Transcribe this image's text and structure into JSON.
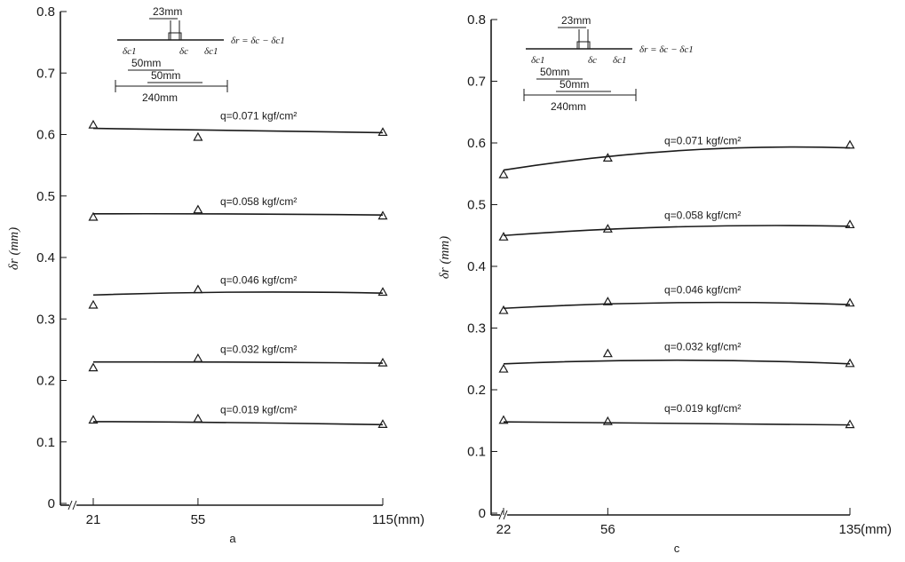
{
  "chart_data": [
    {
      "type": "line",
      "panel_label": "a",
      "ylabel": "δr (mm)",
      "xunit": "(mm)",
      "ylim": [
        0,
        0.8
      ],
      "y_ticks": [
        "0",
        "0.1",
        "0.2",
        "0.3",
        "0.4",
        "0.5",
        "0.6",
        "0.7",
        "0.8"
      ],
      "x": [
        21,
        55,
        115
      ],
      "x_tick_labels": [
        "21",
        "55",
        "115"
      ],
      "grid": false,
      "series": [
        {
          "name": "q=0.071 kgf/cm²",
          "values": [
            0.615,
            0.595,
            0.603
          ],
          "fit": [
            0.61,
            0.607,
            0.603
          ]
        },
        {
          "name": "q=0.058 kgf/cm²",
          "values": [
            0.465,
            0.477,
            0.467
          ],
          "fit": [
            0.471,
            0.471,
            0.469
          ]
        },
        {
          "name": "q=0.046 kgf/cm²",
          "values": [
            0.322,
            0.347,
            0.343
          ],
          "fit": [
            0.339,
            0.343,
            0.342
          ]
        },
        {
          "name": "q=0.032 kgf/cm²",
          "values": [
            0.22,
            0.235,
            0.228
          ],
          "fit": [
            0.23,
            0.23,
            0.228
          ]
        },
        {
          "name": "q=0.019 kgf/cm²",
          "values": [
            0.135,
            0.137,
            0.128
          ],
          "fit": [
            0.133,
            0.132,
            0.128
          ]
        }
      ],
      "diagram": {
        "dim_small": "23mm",
        "dim_mid": "50mm",
        "dim_mid2": "50mm",
        "dim_large": "240mm",
        "formula": "δr = δc − δc1",
        "sym_c1": "δc1",
        "sym_c": "δc"
      }
    },
    {
      "type": "line",
      "panel_label": "c",
      "ylabel": "δr (mm)",
      "xunit": "(mm)",
      "ylim": [
        0,
        0.8
      ],
      "y_ticks": [
        "0",
        "0.1",
        "0.2",
        "0.3",
        "0.4",
        "0.5",
        "0.6",
        "0.7",
        "0.8"
      ],
      "x": [
        22,
        56,
        135
      ],
      "x_tick_labels": [
        "22",
        "56",
        "135"
      ],
      "grid": false,
      "series": [
        {
          "name": "q=0.071 kgf/cm²",
          "values": [
            0.548,
            0.575,
            0.596
          ],
          "fit": [
            0.556,
            0.578,
            0.592
          ]
        },
        {
          "name": "q=0.058 kgf/cm²",
          "values": [
            0.447,
            0.46,
            0.467
          ],
          "fit": [
            0.45,
            0.46,
            0.465
          ]
        },
        {
          "name": "q=0.046 kgf/cm²",
          "values": [
            0.328,
            0.342,
            0.34
          ],
          "fit": [
            0.332,
            0.339,
            0.338
          ]
        },
        {
          "name": "q=0.032 kgf/cm²",
          "values": [
            0.233,
            0.258,
            0.242
          ],
          "fit": [
            0.242,
            0.247,
            0.242
          ]
        },
        {
          "name": "q=0.019 kgf/cm²",
          "values": [
            0.15,
            0.148,
            0.143
          ],
          "fit": [
            0.148,
            0.147,
            0.143
          ]
        }
      ],
      "diagram": {
        "dim_small": "23mm",
        "dim_mid": "50mm",
        "dim_mid2": "50mm",
        "dim_large": "240mm",
        "formula": "δr = δc − δc1",
        "sym_c1": "δc1",
        "sym_c": "δc"
      }
    }
  ]
}
